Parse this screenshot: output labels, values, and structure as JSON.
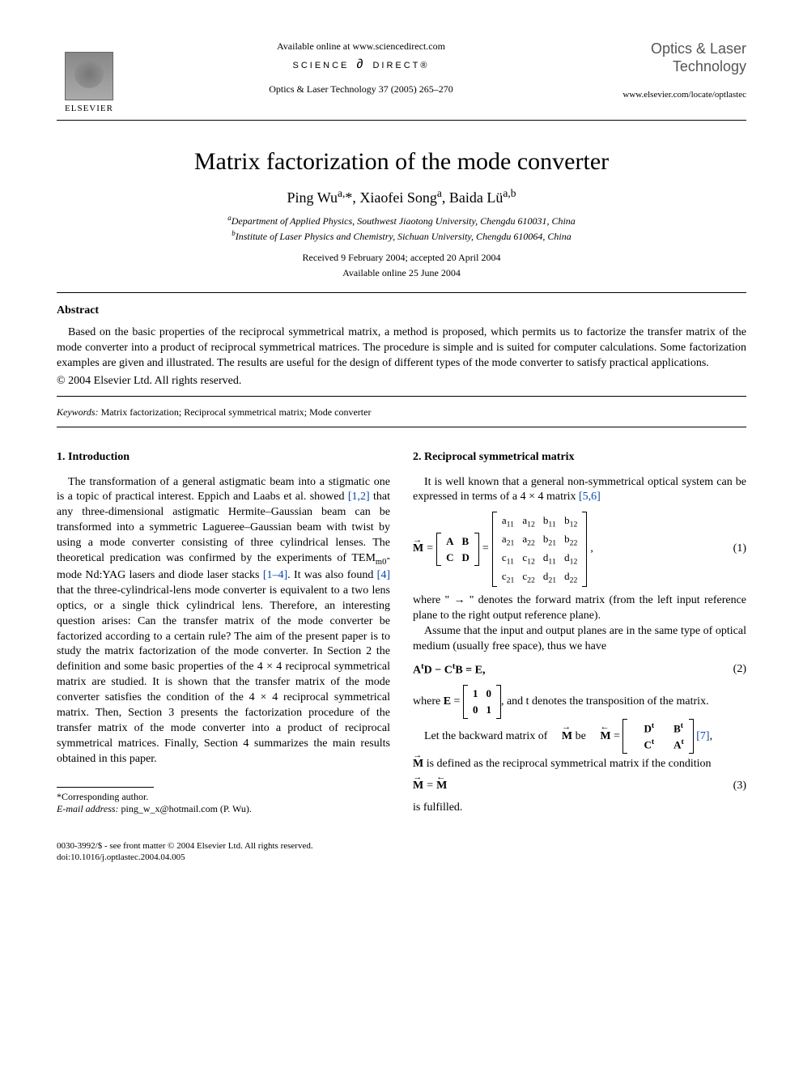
{
  "header": {
    "publisher_name": "ELSEVIER",
    "available_online": "Available online at www.sciencedirect.com",
    "science_direct_left": "SCIENCE",
    "science_direct_right": "DIRECT®",
    "citation": "Optics & Laser Technology 37 (2005) 265–270",
    "journal_title": "Optics & Laser Technology",
    "journal_url": "www.elsevier.com/locate/optlastec"
  },
  "article": {
    "title": "Matrix factorization of the mode converter",
    "authors_html": "Ping Wu<sup>a,</sup>*, Xiaofei Song<sup>a</sup>, Baida Lü<sup>a,b</sup>",
    "aff_a": "Department of Applied Physics, Southwest Jiaotong University, Chengdu 610031, China",
    "aff_b": "Institute of Laser Physics and Chemistry, Sichuan University, Chengdu 610064, China",
    "received": "Received 9 February 2004; accepted 20 April 2004",
    "available": "Available online 25 June 2004"
  },
  "abstract": {
    "heading": "Abstract",
    "text": "Based on the basic properties of the reciprocal symmetrical matrix, a method is proposed, which permits us to factorize the transfer matrix of the mode converter into a product of reciprocal symmetrical matrices. The procedure is simple and is suited for computer calculations. Some factorization examples are given and illustrated. The results are useful for the design of different types of the mode converter to satisfy practical applications.",
    "copyright": "© 2004 Elsevier Ltd. All rights reserved."
  },
  "keywords": {
    "label": "Keywords:",
    "text": " Matrix factorization; Reciprocal symmetrical matrix; Mode converter"
  },
  "sections": {
    "s1_heading": "1. Introduction",
    "s1_p1a": "The transformation of a general astigmatic beam into a stigmatic one is a topic of practical interest. Eppich and Laabs et al. showed ",
    "s1_ref1": "[1,2]",
    "s1_p1b": " that any three-dimensional astigmatic Hermite–Gaussian beam can be transformed into a symmetric Lagueree–Gaussian beam with twist by using a mode converter consisting of three cylindrical lenses. The theoretical predication was confirmed by the experiments of TEM",
    "s1_sub": "m0",
    "s1_p1c": "-mode Nd:YAG lasers and diode laser stacks ",
    "s1_ref2": "[1–4]",
    "s1_p1d": ". It was also found ",
    "s1_ref3": "[4]",
    "s1_p1e": " that the three-cylindrical-lens mode converter is equivalent to a two lens optics, or a single thick cylindrical lens. Therefore, an interesting question arises: Can the transfer matrix of the mode converter be factorized according to a certain rule? The aim of the present paper is to study the matrix factorization of the mode converter. In Section 2 the definition and some basic properties of the 4 × 4 reciprocal symmetrical matrix are studied. It is shown that the transfer matrix of the mode converter satisfies the condition of the 4 × 4 reciprocal symmetrical matrix. Then, Section 3 presents the factorization procedure of the transfer matrix of the mode converter into a product of reciprocal symmetrical matrices. Finally, Section 4 summarizes the main results obtained in this paper.",
    "s2_heading": "2. Reciprocal symmetrical matrix",
    "s2_p1a": "It is well known that a general non-symmetrical optical system can be expressed in terms of a 4 × 4 matrix ",
    "s2_ref1": "[5,6]",
    "s2_p2": "where \" → \" denotes the forward matrix (from the left input reference plane to the right output reference plane).",
    "s2_p3": "Assume that the input and output planes are in the same type of optical medium (usually free space), thus we have",
    "s2_p4a": "where ",
    "s2_p4b": ", and t denotes the transposition of the matrix.",
    "s2_p5a": "Let the backward matrix of ",
    "s2_p5b": " be ",
    "s2_ref2": "[7]",
    "s2_p6a": " is defined as the reciprocal symmetrical matrix if the condition",
    "s2_p7": "is fulfilled."
  },
  "equations": {
    "eq1": {
      "lhs": "M",
      "block2x2": [
        "A",
        "B",
        "C",
        "D"
      ],
      "block4x4": [
        "a₁₁",
        "a₁₂",
        "b₁₁",
        "b₁₂",
        "a₂₁",
        "a₂₂",
        "b₂₁",
        "b₂₂",
        "c₁₁",
        "c₁₂",
        "d₁₁",
        "d₁₂",
        "c₂₁",
        "c₂₂",
        "d₂₁",
        "d₂₂"
      ],
      "num": "(1)"
    },
    "eq2": {
      "text": "AᵗD − CᵗB = E,",
      "num": "(2)"
    },
    "eq2b": {
      "lhs": "E = ",
      "cells": [
        "1",
        "0",
        "0",
        "1"
      ]
    },
    "eqback": {
      "lhs": "M = ",
      "cells": [
        "Dᵗ",
        "Bᵗ",
        "Cᵗ",
        "Aᵗ"
      ]
    },
    "eq3": {
      "text": "M = M",
      "num": "(3)"
    }
  },
  "footnotes": {
    "corresponding": "*Corresponding author.",
    "email_label": "E-mail address:",
    "email": " ping_w_x@hotmail.com (P. Wu)."
  },
  "footer": {
    "line1": "0030-3992/$ - see front matter © 2004 Elsevier Ltd. All rights reserved.",
    "line2": "doi:10.1016/j.optlastec.2004.04.005"
  },
  "colors": {
    "link": "#0645ad",
    "text": "#000000",
    "journal_title": "#555555"
  }
}
